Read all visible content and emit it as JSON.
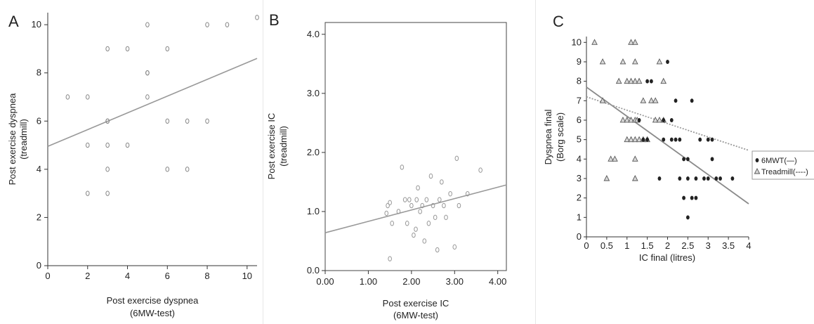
{
  "chart_data": [
    {
      "panel_letter": "A",
      "type": "scatter",
      "xlabel": "Post exercise dyspnea",
      "xlabel2": "(6MW-test)",
      "ylabel": "Post exercise dyspnea",
      "ylabel2": "(treadmill)",
      "xlim": [
        0,
        10.5
      ],
      "ylim": [
        0,
        10.5
      ],
      "xticks": [
        "0",
        "2",
        "4",
        "6",
        "8",
        "10"
      ],
      "yticks": [
        "0",
        "2",
        "4",
        "6",
        "8",
        "10"
      ],
      "x": [
        1,
        2,
        2,
        2,
        3,
        3,
        3,
        3,
        3,
        3,
        4,
        4,
        5,
        5,
        5,
        5,
        6,
        6,
        6,
        7,
        7,
        8,
        8,
        9,
        10.5
      ],
      "y": [
        7,
        7,
        5,
        3,
        9,
        6,
        5,
        4,
        3,
        6,
        9,
        5,
        10,
        8,
        8,
        7,
        9,
        6,
        4,
        6,
        4,
        10,
        6,
        10,
        10.3
      ],
      "fit_line": [
        [
          0,
          4.95
        ],
        [
          10.5,
          8.6
        ]
      ],
      "marker": "open-circle",
      "grid": false
    },
    {
      "panel_letter": "B",
      "type": "scatter",
      "xlabel": "Post exercise IC",
      "xlabel2": "(6MW-test)",
      "ylabel": "Post exercise IC",
      "ylabel2": "(treadmill)",
      "xlim": [
        0,
        4.2
      ],
      "ylim": [
        0,
        4.2
      ],
      "xticks": [
        "0.00",
        "1.00",
        "2.00",
        "3.00",
        "4.00"
      ],
      "yticks": [
        "0.0",
        "1.0",
        "2.0",
        "3.0",
        "4.0"
      ],
      "x": [
        1.42,
        1.45,
        1.5,
        1.5,
        1.55,
        1.7,
        1.78,
        1.85,
        1.9,
        1.95,
        2.0,
        2.05,
        2.1,
        2.12,
        2.15,
        2.2,
        2.25,
        2.3,
        2.35,
        2.4,
        2.45,
        2.5,
        2.55,
        2.6,
        2.65,
        2.7,
        2.75,
        2.8,
        2.9,
        3.0,
        3.05,
        3.1,
        3.3,
        3.6
      ],
      "y": [
        0.97,
        1.1,
        1.15,
        0.2,
        0.8,
        1.0,
        1.75,
        1.2,
        0.8,
        1.2,
        1.1,
        0.6,
        0.7,
        1.2,
        1.4,
        1.0,
        1.1,
        0.5,
        1.2,
        0.8,
        1.6,
        1.1,
        0.9,
        0.35,
        1.2,
        1.5,
        1.1,
        0.9,
        1.3,
        0.4,
        1.9,
        1.1,
        1.3,
        1.7
      ],
      "fit_line": [
        [
          0,
          0.64
        ],
        [
          4.2,
          1.45
        ]
      ],
      "marker": "open-circle",
      "grid": false
    },
    {
      "panel_letter": "C",
      "type": "scatter",
      "xlabel": "IC final (litres)",
      "ylabel": "Dyspnea final",
      "ylabel2": "(Borg scale)",
      "xlim": [
        0,
        4
      ],
      "ylim": [
        0,
        10.3
      ],
      "xticks": [
        "0",
        "0.5",
        "1",
        "1.5",
        "2",
        "2.5",
        "3",
        "3.5",
        "4"
      ],
      "yticks": [
        "0",
        "1",
        "2",
        "3",
        "4",
        "5",
        "6",
        "7",
        "8",
        "9",
        "10"
      ],
      "legend_position": "right",
      "series": [
        {
          "name": "6MWT(—)",
          "marker": "filled-circle",
          "line_style": "solid",
          "x": [
            1.3,
            1.5,
            1.6,
            1.8,
            1.9,
            2.0,
            2.1,
            2.1,
            2.2,
            2.3,
            2.3,
            2.4,
            2.4,
            2.5,
            2.5,
            2.6,
            2.6,
            2.7,
            2.7,
            2.8,
            2.9,
            3.0,
            3.0,
            3.1,
            3.1,
            3.2,
            3.3,
            3.6,
            1.9,
            2.2,
            2.5,
            1.5,
            1.4
          ],
          "y": [
            6,
            5,
            8,
            3,
            6,
            9,
            6,
            5,
            7,
            5,
            3,
            4,
            2,
            4,
            1,
            7,
            2,
            3,
            2,
            5,
            3,
            5,
            3,
            5,
            4,
            3,
            3,
            3,
            5,
            5,
            3,
            8,
            5
          ],
          "fit_line": [
            [
              0,
              7.7
            ],
            [
              4,
              1.7
            ]
          ]
        },
        {
          "name": "Treadmill(----)",
          "marker": "open-triangle",
          "line_style": "dotted",
          "x": [
            0.2,
            0.4,
            0.4,
            0.5,
            0.6,
            0.7,
            0.8,
            0.9,
            0.9,
            1.0,
            1.0,
            1.0,
            1.1,
            1.1,
            1.1,
            1.1,
            1.2,
            1.2,
            1.2,
            1.2,
            1.2,
            1.2,
            1.3,
            1.3,
            1.4,
            1.4,
            1.5,
            1.6,
            1.7,
            1.7,
            1.8,
            1.8,
            1.9,
            1.9,
            1.2,
            1.25
          ],
          "y": [
            10,
            9,
            7,
            3,
            4,
            4,
            8,
            9,
            6,
            6,
            8,
            5,
            10,
            8,
            5,
            6,
            10,
            9,
            8,
            5,
            4,
            3,
            8,
            5,
            7,
            5,
            5,
            7,
            6,
            7,
            6,
            9,
            8,
            6,
            6,
            6
          ],
          "fit_line": [
            [
              0,
              7.2
            ],
            [
              4,
              4.45
            ]
          ]
        }
      ],
      "grid": false
    }
  ]
}
